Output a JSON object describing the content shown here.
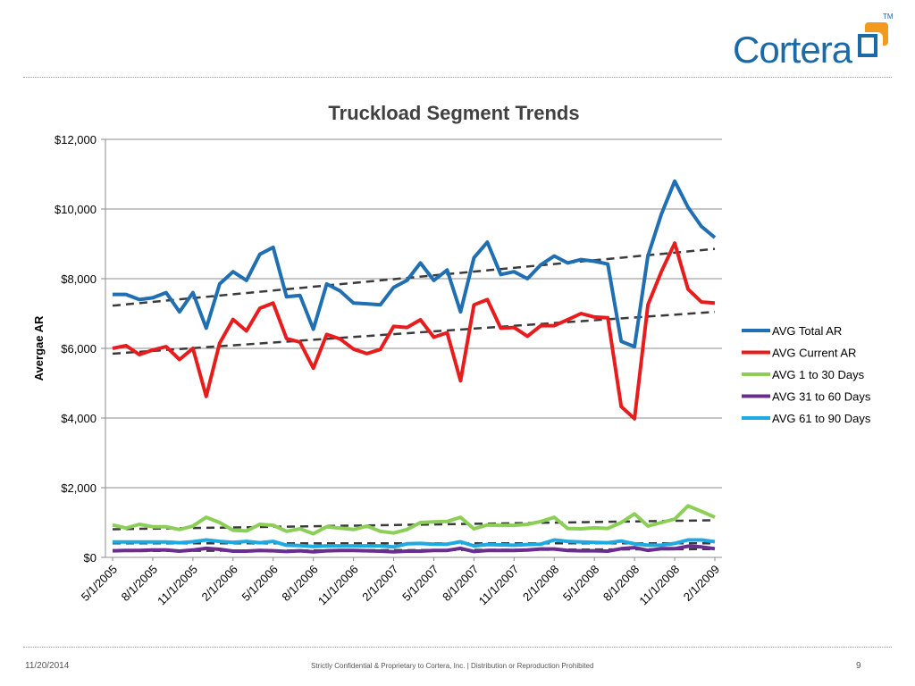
{
  "brand": {
    "name": "Cortera",
    "tm": "TM",
    "accent_blue": "#1a6aa8",
    "accent_orange": "#f29a1e"
  },
  "footer": {
    "date": "11/20/2014",
    "confidential": "Strictly Confidential & Proprietary to Cortera, Inc. |  Distribution or Reproduction Prohibited",
    "page_number": "9"
  },
  "chart_data": {
    "type": "line",
    "title": "Truckload Segment Trends",
    "xlabel": "",
    "ylabel": "Avergae AR",
    "ylim": [
      0,
      12000
    ],
    "yticks": [
      "$0",
      "$2,000",
      "$4,000",
      "$6,000",
      "$8,000",
      "$10,000",
      "$12,000"
    ],
    "grid": true,
    "legend_position": "right",
    "x_tick_labels": [
      "5/1/2005",
      "8/1/2005",
      "11/1/2005",
      "2/1/2006",
      "5/1/2006",
      "8/1/2006",
      "11/1/2006",
      "2/1/2007",
      "5/1/2007",
      "8/1/2007",
      "11/1/2007",
      "2/1/2008",
      "5/1/2008",
      "8/1/2008",
      "11/1/2008",
      "2/1/2009"
    ],
    "x_tick_every": 3,
    "trendlines": "linear (dashed) for each series",
    "series": [
      {
        "name": "AVG Total AR",
        "color": "#1f6fb2",
        "values": [
          7550,
          7550,
          7400,
          7450,
          7600,
          7050,
          7600,
          6580,
          7850,
          8200,
          7950,
          8700,
          8900,
          7480,
          7520,
          6550,
          7850,
          7650,
          7300,
          7280,
          7250,
          7750,
          7950,
          8450,
          7950,
          8250,
          7050,
          8600,
          9050,
          8120,
          8200,
          8000,
          8400,
          8650,
          8450,
          8550,
          8500,
          8420,
          6200,
          6050,
          8650,
          9850,
          10800,
          10050,
          9500,
          9180
        ]
      },
      {
        "name": "AVG Current AR",
        "color": "#e81c1c",
        "values": [
          6000,
          6080,
          5820,
          5950,
          6050,
          5680,
          6000,
          4620,
          6150,
          6830,
          6500,
          7150,
          7300,
          6280,
          6180,
          5430,
          6400,
          6270,
          5980,
          5850,
          5970,
          6630,
          6600,
          6820,
          6320,
          6450,
          5070,
          7250,
          7400,
          6580,
          6600,
          6350,
          6650,
          6650,
          6820,
          7000,
          6900,
          6880,
          4330,
          3980,
          7250,
          8200,
          9020,
          7700,
          7330,
          7300
        ]
      },
      {
        "name": "AVG 1 to 30 Days",
        "color": "#8ccf58",
        "values": [
          930,
          840,
          950,
          880,
          880,
          800,
          900,
          1150,
          1000,
          780,
          760,
          950,
          920,
          750,
          820,
          680,
          880,
          840,
          800,
          900,
          750,
          700,
          800,
          1000,
          1020,
          1030,
          1150,
          820,
          930,
          920,
          920,
          950,
          1030,
          1150,
          830,
          820,
          850,
          830,
          1000,
          1250,
          900,
          1000,
          1100,
          1480,
          1320,
          1150
        ]
      },
      {
        "name": "AVG 31 to 60 Days",
        "color": "#6a2c8f",
        "values": [
          190,
          200,
          200,
          210,
          210,
          180,
          210,
          260,
          230,
          180,
          180,
          200,
          190,
          170,
          190,
          160,
          190,
          200,
          200,
          190,
          180,
          160,
          180,
          180,
          200,
          200,
          260,
          170,
          200,
          200,
          200,
          210,
          240,
          240,
          200,
          190,
          190,
          180,
          250,
          280,
          200,
          250,
          250,
          320,
          300,
          250
        ]
      },
      {
        "name": "AVG 61 to 90 Days",
        "color": "#1ea9e1",
        "values": [
          440,
          440,
          440,
          440,
          440,
          420,
          450,
          500,
          460,
          430,
          460,
          420,
          460,
          350,
          340,
          310,
          330,
          330,
          330,
          330,
          330,
          300,
          390,
          400,
          380,
          380,
          450,
          330,
          370,
          360,
          350,
          370,
          380,
          500,
          460,
          440,
          430,
          420,
          470,
          390,
          350,
          350,
          400,
          500,
          500,
          450
        ]
      }
    ]
  }
}
